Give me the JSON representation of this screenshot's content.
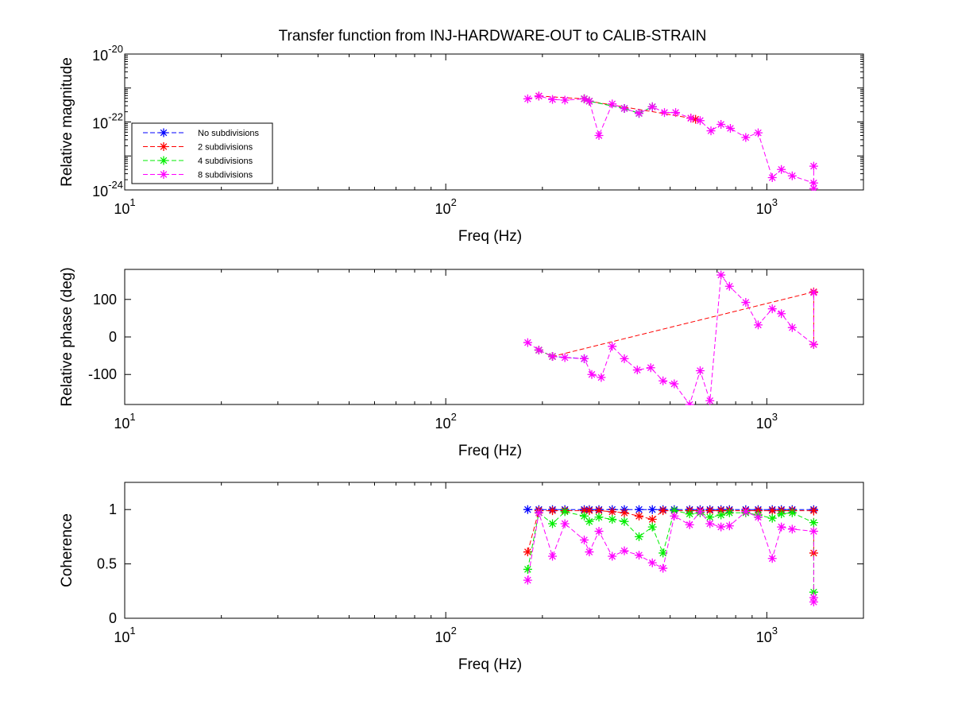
{
  "title": "Transfer function from INJ-HARDWARE-OUT to CALIB-STRAIN",
  "colors": {
    "No subdivisions": "#0000ff",
    "2 subdivisions": "#ff0000",
    "4 subdivisions": "#00ee00",
    "8 subdivisions": "#ff00ff"
  },
  "legend_position": "left, inside magnitude plot",
  "chart_data": [
    {
      "type": "line",
      "ylabel": "Relative magnitude",
      "xlabel": "Freq (Hz)",
      "xscale": "log",
      "yscale": "log",
      "xlim": [
        10,
        2000
      ],
      "ylim": [
        1e-24,
        1e-20
      ],
      "xticks": [
        {
          "base": "10",
          "exp": "1"
        },
        {
          "base": "10",
          "exp": "2"
        },
        {
          "base": "10",
          "exp": "3"
        }
      ],
      "yticks": [
        {
          "value": 1e-24,
          "base": "10",
          "exp": "-24"
        },
        {
          "value": 1e-22,
          "base": "10",
          "exp": "-22"
        },
        {
          "value": 1e-20,
          "base": "10",
          "exp": "-20"
        }
      ],
      "legend": [
        "No subdivisions",
        "2 subdivisions",
        "4 subdivisions",
        "8 subdivisions"
      ],
      "series": [
        {
          "name": "No subdivisions",
          "x": [
            270,
            280,
            360,
            400,
            440
          ],
          "y": [
            4.8e-22,
            4.1e-22,
            2.5e-22,
            1.8e-22,
            2.8e-22
          ]
        },
        {
          "name": "2 subdivisions",
          "x": [
            195,
            270,
            280,
            580,
            600
          ],
          "y": [
            5.8e-22,
            4.8e-22,
            4.1e-22,
            1.3e-22,
            1.2e-22
          ]
        },
        {
          "name": "4 subdivisions",
          "x": [
            270,
            280,
            360,
            400,
            440
          ],
          "y": [
            4.8e-22,
            4.1e-22,
            2.5e-22,
            1.8e-22,
            2.8e-22
          ]
        },
        {
          "name": "8 subdivisions",
          "x": [
            180,
            195,
            215,
            235,
            270,
            280,
            300,
            330,
            360,
            400,
            440,
            480,
            520,
            580,
            620,
            670,
            720,
            770,
            860,
            940,
            1040,
            1110,
            1200,
            1400,
            1400,
            1400
          ],
          "y": [
            4.8e-22,
            5.8e-22,
            4.6e-22,
            4.4e-22,
            4.8e-22,
            4.1e-22,
            4e-23,
            3.4e-22,
            2.5e-22,
            1.8e-22,
            2.8e-22,
            1.9e-22,
            1.9e-22,
            1.3e-22,
            1.1e-22,
            5.5e-23,
            8.5e-23,
            6.5e-23,
            3.5e-23,
            4.8e-23,
            2.3e-24,
            4e-24,
            2.6e-24,
            1.6e-24,
            1.1e-24,
            5e-24
          ]
        }
      ]
    },
    {
      "type": "line",
      "ylabel": "Relative phase (deg)",
      "xlabel": "Freq (Hz)",
      "xscale": "log",
      "yscale": "linear",
      "xlim": [
        10,
        2000
      ],
      "ylim": [
        -180,
        180
      ],
      "xticks": [
        {
          "base": "10",
          "exp": "1"
        },
        {
          "base": "10",
          "exp": "2"
        },
        {
          "base": "10",
          "exp": "3"
        }
      ],
      "yticks": [
        {
          "value": -100,
          "label": "-100"
        },
        {
          "value": 0,
          "label": "0"
        },
        {
          "value": 100,
          "label": "100"
        }
      ],
      "series": [
        {
          "name": "No subdivisions",
          "x": [
            195,
            215,
            270
          ],
          "y": [
            -35,
            -52,
            -58
          ]
        },
        {
          "name": "2 subdivisions",
          "x": [
            195,
            215,
            1400,
            1400
          ],
          "y": [
            -35,
            -52,
            120,
            -20
          ]
        },
        {
          "name": "4 subdivisions",
          "x": [
            195,
            215
          ],
          "y": [
            -35,
            -52
          ]
        },
        {
          "name": "8 subdivisions",
          "x": [
            180,
            195,
            215,
            235,
            270,
            285,
            305,
            330,
            360,
            395,
            435,
            475,
            515,
            575,
            620,
            665,
            720,
            765,
            860,
            940,
            1040,
            1110,
            1200,
            1400,
            1400
          ],
          "y": [
            -15,
            -35,
            -52,
            -55,
            -58,
            -100,
            -108,
            -25,
            -58,
            -88,
            -82,
            -117,
            -125,
            -180,
            -90,
            -170,
            165,
            135,
            92,
            32,
            75,
            62,
            25,
            -20,
            118
          ]
        }
      ]
    },
    {
      "type": "line",
      "ylabel": "Coherence",
      "xlabel": "Freq (Hz)",
      "xscale": "log",
      "yscale": "linear",
      "xlim": [
        10,
        2000
      ],
      "ylim": [
        0,
        1.25
      ],
      "xticks": [
        {
          "base": "10",
          "exp": "1"
        },
        {
          "base": "10",
          "exp": "2"
        },
        {
          "base": "10",
          "exp": "3"
        }
      ],
      "yticks": [
        {
          "value": 0,
          "label": "0"
        },
        {
          "value": 0.5,
          "label": "0.5"
        },
        {
          "value": 1,
          "label": "1"
        }
      ],
      "series": [
        {
          "name": "No subdivisions",
          "x": [
            180,
            195,
            215,
            235,
            270,
            280,
            300,
            330,
            360,
            400,
            440,
            475,
            515,
            575,
            620,
            665,
            720,
            765,
            860,
            940,
            1040,
            1110,
            1200,
            1400
          ],
          "y": [
            1,
            1,
            1,
            1,
            1,
            1,
            1,
            1,
            1,
            1,
            1,
            1,
            1,
            1,
            1,
            1,
            1,
            1,
            1,
            1,
            1,
            1,
            1,
            1
          ]
        },
        {
          "name": "2 subdivisions",
          "x": [
            180,
            195,
            215,
            235,
            270,
            280,
            300,
            330,
            360,
            400,
            440,
            475,
            515,
            575,
            620,
            665,
            720,
            765,
            860,
            940,
            1040,
            1110,
            1200,
            1400,
            1400
          ],
          "y": [
            0.61,
            0.99,
            0.99,
            0.99,
            0.99,
            0.99,
            0.99,
            0.98,
            0.97,
            0.94,
            0.91,
            0.99,
            0.99,
            0.99,
            0.99,
            0.99,
            0.99,
            0.99,
            0.99,
            0.99,
            0.99,
            0.99,
            0.99,
            0.99,
            0.6
          ]
        },
        {
          "name": "4 subdivisions",
          "x": [
            180,
            195,
            215,
            235,
            270,
            280,
            300,
            330,
            360,
            400,
            440,
            475,
            515,
            575,
            620,
            665,
            720,
            765,
            860,
            940,
            1040,
            1110,
            1200,
            1400,
            1400
          ],
          "y": [
            0.45,
            0.97,
            0.87,
            0.98,
            0.94,
            0.89,
            0.93,
            0.91,
            0.89,
            0.75,
            0.84,
            0.6,
            0.99,
            0.96,
            0.97,
            0.93,
            0.95,
            0.97,
            0.97,
            0.95,
            0.92,
            0.96,
            0.97,
            0.88,
            0.24
          ]
        },
        {
          "name": "8 subdivisions",
          "x": [
            180,
            195,
            215,
            235,
            270,
            280,
            300,
            330,
            360,
            400,
            440,
            475,
            515,
            575,
            620,
            665,
            720,
            765,
            860,
            940,
            1040,
            1110,
            1200,
            1400,
            1400,
            1400
          ],
          "y": [
            0.35,
            0.97,
            0.57,
            0.87,
            0.72,
            0.61,
            0.8,
            0.57,
            0.62,
            0.58,
            0.51,
            0.46,
            0.94,
            0.86,
            0.98,
            0.87,
            0.84,
            0.85,
            0.98,
            0.93,
            0.55,
            0.84,
            0.82,
            0.8,
            0.19,
            0.15
          ]
        }
      ]
    }
  ]
}
